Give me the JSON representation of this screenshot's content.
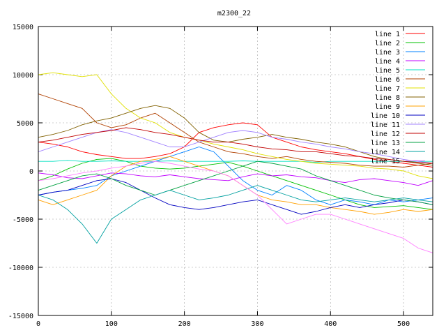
{
  "chart_data": {
    "type": "line",
    "title": "m2300_22",
    "xlabel": "",
    "ylabel": "",
    "xlim": [
      0,
      540
    ],
    "ylim": [
      -15000,
      15000
    ],
    "xticks": [
      0,
      100,
      200,
      300,
      400,
      500
    ],
    "yticks": [
      -15000,
      -10000,
      -5000,
      0,
      5000,
      10000,
      15000
    ],
    "grid": true,
    "legend_position": "top-right",
    "x": [
      0,
      20,
      40,
      60,
      80,
      100,
      120,
      140,
      160,
      180,
      200,
      220,
      240,
      260,
      280,
      300,
      320,
      340,
      360,
      380,
      400,
      420,
      440,
      460,
      480,
      500,
      520,
      540
    ],
    "series": [
      {
        "name": "line 1",
        "color": "#ff0000",
        "values": [
          3000,
          2800,
          2500,
          2000,
          1700,
          1500,
          1300,
          1300,
          1500,
          1800,
          2500,
          4000,
          4500,
          4800,
          5000,
          4800,
          3500,
          3000,
          2500,
          2200,
          2000,
          1800,
          1500,
          1200,
          1000,
          800,
          600,
          400
        ]
      },
      {
        "name": "line 2",
        "color": "#00c000",
        "values": [
          -1000,
          -500,
          200,
          800,
          1200,
          1300,
          1000,
          500,
          300,
          200,
          300,
          500,
          700,
          900,
          500,
          0,
          -500,
          -1000,
          -1500,
          -2000,
          -2500,
          -3000,
          -3500,
          -3800,
          -3700,
          -3600,
          -3800,
          -4000
        ]
      },
      {
        "name": "line 3",
        "color": "#0080ff",
        "values": [
          -2500,
          -2200,
          -2000,
          -1800,
          -1500,
          -500,
          0,
          500,
          1000,
          1500,
          2000,
          2500,
          2000,
          500,
          -1000,
          -2000,
          -2500,
          -1500,
          -2000,
          -3000,
          -3500,
          -3000,
          -3200,
          -3500,
          -3000,
          -3200,
          -3000,
          -2800
        ]
      },
      {
        "name": "line 4",
        "color": "#c000ff",
        "values": [
          -200,
          -400,
          -700,
          -800,
          -500,
          -200,
          -300,
          -500,
          -600,
          -400,
          -600,
          -800,
          -900,
          -1000,
          -600,
          -300,
          -500,
          -400,
          -600,
          -700,
          -1000,
          -1200,
          -900,
          -800,
          -1000,
          -1200,
          -1500,
          -1000
        ]
      },
      {
        "name": "line 5",
        "color": "#00e0c0",
        "values": [
          1000,
          1000,
          1100,
          1000,
          1000,
          1050,
          1000,
          1000,
          1000,
          1050,
          1000,
          1000,
          1000,
          1000,
          1050,
          1000,
          1000,
          1000,
          1000,
          900,
          1000,
          1000,
          1000,
          1000,
          1000,
          1000,
          1000,
          1000
        ]
      },
      {
        "name": "line 6",
        "color": "#b04000",
        "values": [
          8000,
          7500,
          7000,
          6500,
          5000,
          4500,
          4800,
          5500,
          6000,
          5000,
          4000,
          3000,
          2500,
          2000,
          1800,
          1500,
          1300,
          1500,
          1200,
          1000,
          900,
          800,
          600,
          500,
          500,
          400,
          600,
          800
        ]
      },
      {
        "name": "line 7",
        "color": "#e0e000",
        "values": [
          10000,
          10200,
          10000,
          9800,
          10000,
          8000,
          6500,
          5500,
          5000,
          4000,
          3500,
          3200,
          2800,
          2500,
          2200,
          1800,
          1500,
          1200,
          1000,
          800,
          700,
          600,
          500,
          300,
          200,
          0,
          -500,
          -800
        ]
      },
      {
        "name": "line 8",
        "color": "#806000",
        "values": [
          3500,
          3800,
          4200,
          4800,
          5200,
          5500,
          6000,
          6500,
          6800,
          6500,
          5500,
          4000,
          3200,
          3000,
          3300,
          3500,
          3800,
          3500,
          3300,
          3000,
          2800,
          2500,
          2000,
          1500,
          1200,
          1000,
          800,
          600
        ]
      },
      {
        "name": "line 9",
        "color": "#ffa000",
        "values": [
          -3000,
          -3500,
          -3000,
          -2500,
          -2000,
          -500,
          500,
          1000,
          1200,
          1500,
          1000,
          500,
          0,
          -500,
          -1500,
          -2500,
          -3000,
          -3200,
          -3500,
          -3500,
          -3800,
          -4000,
          -4200,
          -4500,
          -4300,
          -4000,
          -4200,
          -4000
        ]
      },
      {
        "name": "line 10",
        "color": "#0000c0",
        "values": [
          -2500,
          -2200,
          -2000,
          -1500,
          -1000,
          -800,
          -1200,
          -2000,
          -2800,
          -3500,
          -3800,
          -4000,
          -3800,
          -3500,
          -3200,
          -3000,
          -3500,
          -4000,
          -4500,
          -4200,
          -3800,
          -3500,
          -3800,
          -3500,
          -3300,
          -3000,
          -3200,
          -3500
        ]
      },
      {
        "name": "line 11",
        "color": "#a080ff",
        "values": [
          2000,
          2500,
          3000,
          3500,
          4000,
          4300,
          4000,
          3500,
          3000,
          2500,
          2500,
          3000,
          3500,
          4000,
          4200,
          4000,
          3500,
          3300,
          3000,
          2800,
          2500,
          2300,
          2000,
          1800,
          1500,
          1200,
          1000,
          800
        ]
      },
      {
        "name": "line 12",
        "color": "#c00000",
        "values": [
          3000,
          3200,
          3500,
          3800,
          4000,
          4200,
          4500,
          4300,
          4000,
          3800,
          3500,
          3200,
          3000,
          3000,
          2800,
          2500,
          2300,
          2200,
          2000,
          2000,
          1800,
          1600,
          1500,
          1300,
          1200,
          1000,
          900,
          800
        ]
      },
      {
        "name": "line 13",
        "color": "#00a040",
        "values": [
          -2000,
          -1500,
          -1000,
          -500,
          -300,
          -800,
          -1500,
          -2000,
          -2500,
          -2000,
          -1500,
          -1000,
          -500,
          0,
          500,
          1000,
          800,
          500,
          200,
          -500,
          -1000,
          -1500,
          -2000,
          -2500,
          -2800,
          -3000,
          -3200,
          -3500
        ]
      },
      {
        "name": "line 14",
        "color": "#00a0a0",
        "values": [
          -2500,
          -3000,
          -4000,
          -5500,
          -7500,
          -5000,
          -4000,
          -3000,
          -2500,
          -2000,
          -2500,
          -3000,
          -2800,
          -2500,
          -2000,
          -1500,
          -2000,
          -2500,
          -3000,
          -3200,
          -3000,
          -2800,
          -3000,
          -3200,
          -3000,
          -2800,
          -3000,
          -3200
        ]
      },
      {
        "name": "line 15",
        "color": "#ff80ff",
        "values": [
          -1000,
          -800,
          -500,
          -200,
          0,
          300,
          500,
          800,
          1000,
          800,
          500,
          200,
          0,
          -500,
          -1500,
          -2500,
          -4000,
          -5500,
          -5000,
          -4500,
          -4500,
          -5000,
          -5500,
          -6000,
          -6500,
          -7000,
          -8000,
          -8500
        ]
      }
    ]
  }
}
